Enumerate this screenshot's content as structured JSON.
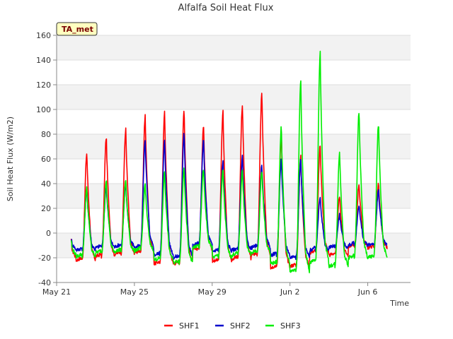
{
  "chart_data": {
    "type": "line",
    "title": "Alfalfa Soil Heat Flux",
    "xlabel": "Time",
    "ylabel": "Soil Heat Flux (W/m2)",
    "ylim": [
      -40,
      160
    ],
    "yticks": [
      -40,
      -20,
      0,
      20,
      40,
      60,
      80,
      100,
      120,
      140,
      160
    ],
    "xlim_days": [
      0,
      18.2
    ],
    "xticks": [
      {
        "day": 0,
        "label": "May 21"
      },
      {
        "day": 4,
        "label": "May 25"
      },
      {
        "day": 8,
        "label": "May 29"
      },
      {
        "day": 12,
        "label": "Jun 2"
      },
      {
        "day": 16,
        "label": "Jun 6"
      }
    ],
    "badge": "TA_met",
    "grid": "horizontal",
    "legend_position": "bottom-center",
    "series": [
      {
        "name": "SHF1",
        "color": "#ff0000",
        "min_day": [
          -20,
          -22,
          -19,
          -17,
          -16,
          -25,
          -25,
          -14,
          -23,
          -21,
          -18,
          -28,
          -27,
          -16,
          -18,
          -11,
          -12
        ],
        "peak": [
          40,
          65,
          78,
          84,
          95,
          98,
          101,
          87,
          98,
          104,
          114,
          81,
          62,
          71,
          30,
          40,
          40
        ]
      },
      {
        "name": "SHF2",
        "color": "#0000cc",
        "min_day": [
          -13,
          -14,
          -12,
          -11,
          -12,
          -18,
          -20,
          -10,
          -15,
          -14,
          -12,
          -18,
          -20,
          -14,
          -12,
          -10,
          -10
        ],
        "peak": [
          25,
          35,
          38,
          40,
          76,
          75,
          81,
          75,
          58,
          62,
          56,
          60,
          60,
          30,
          15,
          23,
          35
        ]
      },
      {
        "name": "SHF3",
        "color": "#00ee00",
        "min_day": [
          -18,
          -19,
          -16,
          -15,
          -14,
          -22,
          -24,
          -12,
          -20,
          -18,
          -16,
          -25,
          -31,
          -24,
          -27,
          -20,
          -20
        ],
        "peak": [
          35,
          37,
          43,
          43,
          40,
          50,
          54,
          52,
          51,
          51,
          51,
          86,
          124,
          146,
          66,
          99,
          89
        ]
      }
    ]
  }
}
